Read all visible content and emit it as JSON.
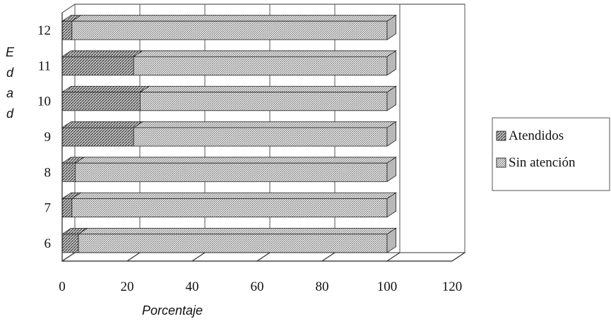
{
  "chart_data": {
    "type": "bar",
    "orientation": "horizontal",
    "stacked": true,
    "three_d": true,
    "categories": [
      "6",
      "7",
      "8",
      "9",
      "10",
      "11",
      "12"
    ],
    "series": [
      {
        "name": "Atendidos",
        "values": [
          5,
          3,
          4,
          22,
          24,
          22,
          3
        ]
      },
      {
        "name": "Sin atención",
        "values": [
          95,
          97,
          96,
          78,
          76,
          78,
          97
        ]
      }
    ],
    "xlabel": "Porcentaje",
    "ylabel": "E d a d",
    "xlim": [
      0,
      120
    ],
    "xticks": [
      "0",
      "20",
      "40",
      "60",
      "80",
      "100",
      "120"
    ],
    "grid": true,
    "legend_position": "right"
  }
}
